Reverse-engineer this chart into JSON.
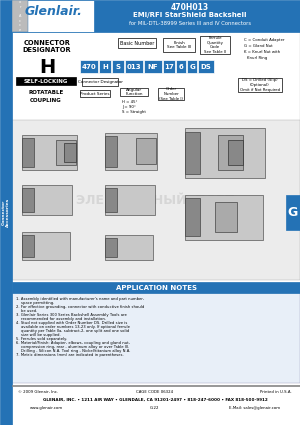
{
  "title_part": "470H’013",
  "title_line1": "470Hʹ013",
  "title_main": "470H013",
  "title_line2": "EMI/RFI StarShield Backshell",
  "title_line3": "for MIL-DTL-38999 Series III and IV Connectors",
  "header_bg": "#2472B5",
  "sidebar_bg": "#2472B5",
  "tab_text": "G",
  "tab_bg": "#2472B5",
  "logo_text": "Glenlair.",
  "connector_designator_title": "CONNECTOR\nDESIGNATOR",
  "connector_designator_value": "H",
  "part_number_boxes": [
    "470",
    "H",
    "S",
    "013",
    "NF",
    "17",
    "6",
    "G",
    "DS"
  ],
  "box_widths": [
    18,
    12,
    12,
    18,
    18,
    12,
    10,
    10,
    16
  ],
  "basic_number_label": "Basic Number",
  "finish_label": "Finish\nSee Table III",
  "pn_qty_label": "Ferrule\nQuantity\nCode\nSee Table II",
  "conn_desig_label": "Connector Designator",
  "product_series_label": "Product Series",
  "angular_function_label": "Angular\nFunction",
  "angular_options": [
    "H = 45°",
    "J = 90°",
    "S = Straight"
  ],
  "order_number_label": "Order\nNumber\n(See Table I)",
  "ds_label": "DS = Drilled (Slip)\n(Optional)\nOmit if Not Required",
  "cc_options": [
    "C = Conduit Adapter",
    "G = Gland Nut",
    "K = Knurl Nut with\n    Knurl Ring"
  ],
  "app_notes_title": "APPLICATION NOTES",
  "app_notes_bg": "#2472B5",
  "app_notes": [
    "Assembly identified with manufacturer's name and part number, space permitting.",
    "For effective grounding, connector with conductive finish should be used.",
    "Glenlair Series 300 Series Backshell Assembly Tools are recommended for assembly and installation.",
    "Stud not supplied with Order Number DS. Drilled size is available on order numbers 13-23 only. If optional ferrule quantity per Table IIa, subtract-2, one split and one solid size will be supplied.",
    "Ferrules sold separately.",
    "Material/Finish:\n  Adapter, elbows, coupling and gland nut, compression ring, rear - aluminum alloy or over Table III.\n  Drilling - Silicon N.A.\n  Tool ring - Nickel/titanium alloy N.A.",
    "Metric dimensions (mm) are indicated in parentheses."
  ],
  "footer_text": "GLENAIR, INC. • 1211 AIR WAY • GLENDALE, CA 91201-2497 • 818-247-6000 • FAX 818-500-9912",
  "footer_web": "www.glenair.com",
  "footer_page": "G-22",
  "footer_email": "E-Mail: sales@glenair.com",
  "footer_copy": "© 2009 Glenair, Inc.",
  "footer_cage": "CAGE CODE 06324",
  "footer_printed": "Printed in U.S.A.",
  "bg_color": "#FFFFFF",
  "watermark_text": "ЭЛЕКТРОННЫЙ  ПОРТ",
  "watermark_color": "#C8C8C8"
}
